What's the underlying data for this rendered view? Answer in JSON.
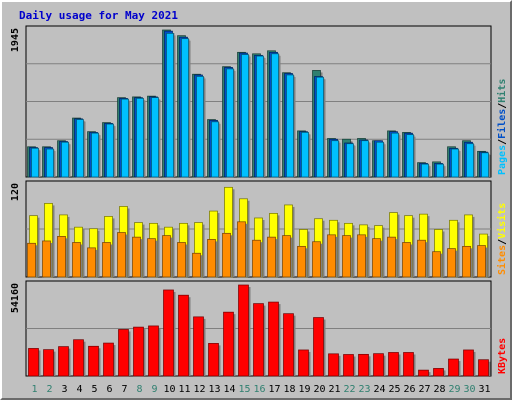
{
  "title": "Daily usage for May 2021",
  "colors": {
    "title": "#0000cc",
    "pages": "#00c0ff",
    "files": "#0050c8",
    "hits": "#308070",
    "sites": "#ff8c00",
    "visits": "#ffff00",
    "kbytes": "#ff0000",
    "weekday_label": "#000000",
    "weekend_label": "#308070"
  },
  "chart_data": [
    {
      "type": "bar",
      "name": "hits-files-pages",
      "max_label": "1945",
      "ylim": [
        0,
        1945
      ],
      "legend": [
        "Pages",
        "Files",
        "Hits"
      ],
      "legend_placement": "right",
      "categories": [
        "1",
        "2",
        "3",
        "4",
        "5",
        "6",
        "7",
        "8",
        "9",
        "10",
        "11",
        "12",
        "13",
        "14",
        "15",
        "16",
        "17",
        "18",
        "19",
        "20",
        "21",
        "22",
        "23",
        "24",
        "25",
        "26",
        "27",
        "28",
        "29",
        "30",
        "31"
      ],
      "weekend_days": [
        "1",
        "2",
        "8",
        "9",
        "15",
        "16",
        "22",
        "23",
        "29",
        "30"
      ],
      "series": [
        {
          "name": "Hits",
          "values": [
            400,
            400,
            480,
            780,
            600,
            720,
            1050,
            1060,
            1070,
            1945,
            1870,
            1360,
            760,
            1460,
            1650,
            1630,
            1670,
            1380,
            610,
            1410,
            510,
            500,
            510,
            480,
            610,
            590,
            190,
            200,
            400,
            480,
            340
          ]
        },
        {
          "name": "Files",
          "values": [
            390,
            390,
            470,
            770,
            590,
            710,
            1040,
            1050,
            1060,
            1930,
            1850,
            1350,
            750,
            1450,
            1640,
            1610,
            1650,
            1370,
            600,
            1330,
            500,
            450,
            490,
            480,
            600,
            580,
            180,
            180,
            380,
            460,
            330
          ]
        },
        {
          "name": "Pages",
          "values": [
            380,
            370,
            460,
            760,
            580,
            700,
            1030,
            1040,
            1050,
            1900,
            1830,
            1330,
            730,
            1430,
            1620,
            1600,
            1630,
            1350,
            590,
            1320,
            480,
            440,
            480,
            460,
            580,
            560,
            170,
            170,
            370,
            440,
            320
          ]
        }
      ]
    },
    {
      "type": "bar",
      "name": "visits-sites",
      "max_label": "120",
      "ylim": [
        0,
        120
      ],
      "legend": [
        "Sites",
        "Visits"
      ],
      "legend_placement": "right",
      "categories": [
        "1",
        "2",
        "3",
        "4",
        "5",
        "6",
        "7",
        "8",
        "9",
        "10",
        "11",
        "12",
        "13",
        "14",
        "15",
        "16",
        "17",
        "18",
        "19",
        "20",
        "21",
        "22",
        "23",
        "24",
        "25",
        "26",
        "27",
        "28",
        "29",
        "30",
        "31"
      ],
      "series": [
        {
          "name": "Visits",
          "values": [
            80,
            96,
            81,
            65,
            63,
            79,
            92,
            71,
            70,
            65,
            70,
            71,
            86,
            117,
            102,
            77,
            83,
            94,
            62,
            76,
            74,
            70,
            68,
            67,
            84,
            80,
            82,
            62,
            74,
            81,
            56
          ]
        },
        {
          "name": "Sites",
          "values": [
            44,
            47,
            53,
            45,
            38,
            45,
            58,
            52,
            50,
            54,
            45,
            31,
            49,
            57,
            72,
            48,
            52,
            54,
            40,
            46,
            55,
            54,
            55,
            50,
            52,
            45,
            48,
            33,
            37,
            40,
            41
          ]
        }
      ]
    },
    {
      "type": "bar",
      "name": "kbytes",
      "max_label": "54160",
      "ylim": [
        0,
        54160
      ],
      "legend": [
        "KBytes"
      ],
      "legend_placement": "right",
      "categories": [
        "1",
        "2",
        "3",
        "4",
        "5",
        "6",
        "7",
        "8",
        "9",
        "10",
        "11",
        "12",
        "13",
        "14",
        "15",
        "16",
        "17",
        "18",
        "19",
        "20",
        "21",
        "22",
        "23",
        "24",
        "25",
        "26",
        "27",
        "28",
        "29",
        "30",
        "31"
      ],
      "series": [
        {
          "name": "KBytes",
          "values": [
            16400,
            15700,
            17500,
            21600,
            17700,
            19600,
            27700,
            29100,
            29800,
            51200,
            48100,
            35200,
            19400,
            38000,
            54160,
            43100,
            44000,
            37100,
            15500,
            34800,
            13200,
            12800,
            12900,
            13300,
            14000,
            14000,
            3500,
            4500,
            10100,
            15500,
            9700
          ]
        }
      ]
    }
  ]
}
